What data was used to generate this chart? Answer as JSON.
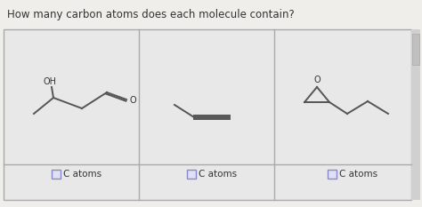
{
  "title": "How many carbon atoms does each molecule contain?",
  "title_fontsize": 8.5,
  "bg_color": "#f0eeeb",
  "panel_bg": "#e8e8e8",
  "border_color": "#aaaaaa",
  "line_color": "#555555",
  "text_color": "#333333",
  "panel_labels": [
    "C atoms",
    "C atoms",
    "C atoms"
  ],
  "box_edge_color": "#8888cc",
  "box_face_color": "#e0e0f5"
}
